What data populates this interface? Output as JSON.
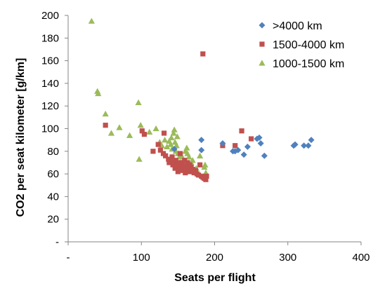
{
  "chart_data": {
    "type": "scatter",
    "xlabel": "Seats per flight",
    "ylabel": "CO2 per seat kilometer [g/km]",
    "xlim": [
      0,
      400
    ],
    "ylim": [
      0,
      200
    ],
    "x_ticks": [
      0,
      100,
      200,
      300,
      400
    ],
    "x_tick_labels": [
      "-",
      "100",
      "200",
      "300",
      "400"
    ],
    "y_ticks": [
      0,
      20,
      40,
      60,
      80,
      100,
      120,
      140,
      160,
      180,
      200
    ],
    "y_tick_labels": [
      "-",
      "20",
      "40",
      "60",
      "80",
      "100",
      "120",
      "140",
      "160",
      "180",
      "200"
    ],
    "grid": false,
    "legend_position": "top-right",
    "series": [
      {
        "name": ">4000 km",
        "color": "#4f81bd",
        "marker": "diamond",
        "points": [
          [
            145,
            82
          ],
          [
            182,
            90
          ],
          [
            182,
            81
          ],
          [
            211,
            87
          ],
          [
            225,
            80
          ],
          [
            228,
            80
          ],
          [
            232,
            81
          ],
          [
            240,
            77
          ],
          [
            245,
            84
          ],
          [
            258,
            91
          ],
          [
            261,
            92
          ],
          [
            263,
            87
          ],
          [
            268,
            76
          ],
          [
            308,
            85
          ],
          [
            310,
            86
          ],
          [
            322,
            85
          ],
          [
            328,
            85
          ],
          [
            332,
            90
          ]
        ]
      },
      {
        "name": "1500-4000 km",
        "color": "#c0504d",
        "marker": "square",
        "points": [
          [
            51,
            103
          ],
          [
            101,
            98
          ],
          [
            104,
            95
          ],
          [
            116,
            80
          ],
          [
            123,
            86
          ],
          [
            126,
            81
          ],
          [
            130,
            78
          ],
          [
            131,
            96
          ],
          [
            133,
            76
          ],
          [
            137,
            73
          ],
          [
            138,
            70
          ],
          [
            140,
            72
          ],
          [
            142,
            75
          ],
          [
            143,
            68
          ],
          [
            144,
            70
          ],
          [
            146,
            65
          ],
          [
            147,
            72
          ],
          [
            148,
            68
          ],
          [
            150,
            62
          ],
          [
            151,
            70
          ],
          [
            152,
            66
          ],
          [
            153,
            78
          ],
          [
            154,
            64
          ],
          [
            155,
            68
          ],
          [
            156,
            70
          ],
          [
            157,
            63
          ],
          [
            158,
            66
          ],
          [
            159,
            72
          ],
          [
            160,
            61
          ],
          [
            161,
            67
          ],
          [
            162,
            63
          ],
          [
            163,
            70
          ],
          [
            164,
            65
          ],
          [
            165,
            62
          ],
          [
            166,
            68
          ],
          [
            167,
            64
          ],
          [
            168,
            66
          ],
          [
            169,
            62
          ],
          [
            170,
            64
          ],
          [
            172,
            61
          ],
          [
            174,
            63
          ],
          [
            176,
            60
          ],
          [
            178,
            59
          ],
          [
            180,
            68
          ],
          [
            182,
            58
          ],
          [
            184,
            57
          ],
          [
            186,
            56
          ],
          [
            188,
            55
          ],
          [
            189,
            58
          ],
          [
            184,
            166
          ],
          [
            211,
            85
          ],
          [
            228,
            85
          ],
          [
            237,
            98
          ],
          [
            250,
            91
          ]
        ]
      },
      {
        "name": "1000-1500 km",
        "color": "#9bbb59",
        "marker": "triangle",
        "points": [
          [
            32,
            195
          ],
          [
            40,
            133
          ],
          [
            41,
            131
          ],
          [
            51,
            113
          ],
          [
            59,
            96
          ],
          [
            70,
            101
          ],
          [
            84,
            94
          ],
          [
            96,
            123
          ],
          [
            97,
            73
          ],
          [
            99,
            103
          ],
          [
            111,
            97
          ],
          [
            120,
            100
          ],
          [
            125,
            88
          ],
          [
            128,
            85
          ],
          [
            132,
            90
          ],
          [
            135,
            84
          ],
          [
            138,
            89
          ],
          [
            140,
            86
          ],
          [
            141,
            92
          ],
          [
            142,
            82
          ],
          [
            144,
            96
          ],
          [
            145,
            99
          ],
          [
            146,
            88
          ],
          [
            147,
            80
          ],
          [
            148,
            85
          ],
          [
            149,
            93
          ],
          [
            150,
            78
          ],
          [
            152,
            75
          ],
          [
            153,
            70
          ],
          [
            155,
            76
          ],
          [
            158,
            72
          ],
          [
            160,
            80
          ],
          [
            162,
            83
          ],
          [
            163,
            78
          ],
          [
            165,
            75
          ],
          [
            168,
            70
          ],
          [
            170,
            72
          ],
          [
            175,
            65
          ],
          [
            180,
            76
          ],
          [
            186,
            66
          ],
          [
            187,
            68
          ],
          [
            188,
            61
          ]
        ]
      }
    ]
  }
}
